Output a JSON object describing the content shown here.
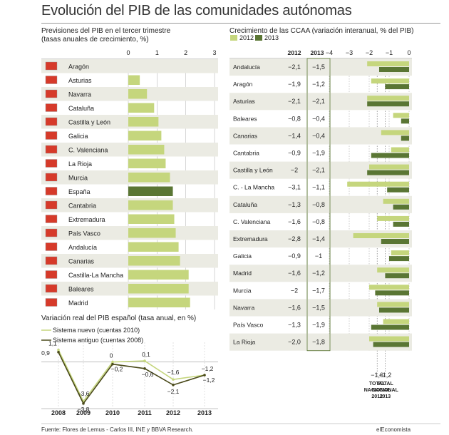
{
  "title": "Evolución del PIB de las comunidades autónomas",
  "footer": "Fuente: Flores de Lemus - Carlos III, INE y BBVA Research.",
  "brand": "elEconomista",
  "colors": {
    "light": "#c5d67d",
    "dark": "#5a7634",
    "stripe": "#ebebe3",
    "line_dark": "#4a4a1a"
  },
  "chart_data": [
    {
      "type": "bar",
      "title": "Previsiones del PIB en el tercer trimestre",
      "subtitle": "(tasas anuales de crecimiento, %)",
      "xlim": [
        0,
        3
      ],
      "xticks": [
        "0",
        "1",
        "2",
        "3"
      ],
      "categories": [
        "Aragón",
        "Asturias",
        "Navarra",
        "Cataluña",
        "Castilla y León",
        "Galicia",
        "C. Valenciana",
        "La Rioja",
        "Murcia",
        "España",
        "Cantabria",
        "Extremadura",
        "País Vasco",
        "Andalucía",
        "Canarias",
        "Castilla-La Mancha",
        "Baleares",
        "Madrid"
      ],
      "values": [
        0.0,
        0.4,
        0.65,
        0.9,
        1.05,
        1.15,
        1.25,
        1.3,
        1.45,
        1.55,
        1.55,
        1.6,
        1.65,
        1.75,
        1.8,
        2.1,
        2.1,
        2.15
      ],
      "highlight": "España"
    },
    {
      "type": "line",
      "title": "Variación real del PIB español (tasa anual, en %)",
      "x": [
        "2008",
        "2009",
        "2010",
        "2011",
        "2012",
        "2013"
      ],
      "series": [
        {
          "name": "Sistema nuevo (cuentas 2010)",
          "values": [
            1.1,
            -3.6,
            0,
            0.1,
            -1.6,
            -1.2
          ],
          "labels": [
            "1,1",
            "−3,6",
            "0",
            "0,1",
            "−1,6",
            "−1,2"
          ]
        },
        {
          "name": "Sistema antiguo (cuentas 2008)",
          "values": [
            0.9,
            -3.8,
            -0.2,
            -0.6,
            -2.1,
            -1.2
          ],
          "labels": [
            "0,9",
            "−3,8",
            "−0,2",
            "−0,6",
            "−2,1",
            "−1,2"
          ]
        }
      ]
    },
    {
      "type": "bar",
      "title": "Crecimiento de las CCAA (variación interanual, % del PIB)",
      "legend": [
        "2012",
        "2013"
      ],
      "column_headers": [
        "2012",
        "2013"
      ],
      "xlim": [
        -4,
        0
      ],
      "xticks": [
        "−4",
        "−3",
        "−2",
        "−1",
        "0"
      ],
      "categories": [
        "Andalucía",
        "Aragón",
        "Asturias",
        "Baleares",
        "Canarias",
        "Cantabria",
        "Castilla y León",
        "C. - La Mancha",
        "Cataluña",
        "C. Valenciana",
        "Extremadura",
        "Galicia",
        "Madrid",
        "Murcia",
        "Navarra",
        "País Vasco",
        "La Rioja"
      ],
      "series": [
        {
          "name": "2012",
          "values": [
            -2.1,
            -1.9,
            -2.1,
            -0.8,
            -1.4,
            -0.9,
            -2,
            -3.1,
            -1.3,
            -1.6,
            -2.8,
            -0.9,
            -1.6,
            -2,
            -1.6,
            -1.3,
            -2.0
          ],
          "labels": [
            "−2,1",
            "−1,9",
            "−2,1",
            "−0,8",
            "−1,4",
            "−0,9",
            "−2",
            "−3,1",
            "−1,3",
            "−1,6",
            "−2,8",
            "−0,9",
            "−1,6",
            "−2",
            "−1,6",
            "−1,3",
            "−2,0"
          ]
        },
        {
          "name": "2013",
          "values": [
            -1.5,
            -1.2,
            -2.1,
            -0.4,
            -0.4,
            -1.9,
            -2.1,
            -1.1,
            -0.8,
            -0.8,
            -1.4,
            -1,
            -1.2,
            -1.7,
            -1.5,
            -1.9,
            -1.8
          ],
          "labels": [
            "−1,5",
            "−1,2",
            "−2,1",
            "−0,4",
            "−0,4",
            "−1,9",
            "−2,1",
            "−1,1",
            "−0,8",
            "−0,8",
            "−1,4",
            "−1",
            "−1,2",
            "−1,7",
            "−1,5",
            "−1,9",
            "−1,8"
          ]
        }
      ],
      "totals": [
        {
          "value": "−1,6",
          "label": "TOTAL NACIONAL 2012"
        },
        {
          "value": "−1,2",
          "label": "TOTAL NACIONAL 2013"
        }
      ]
    }
  ]
}
